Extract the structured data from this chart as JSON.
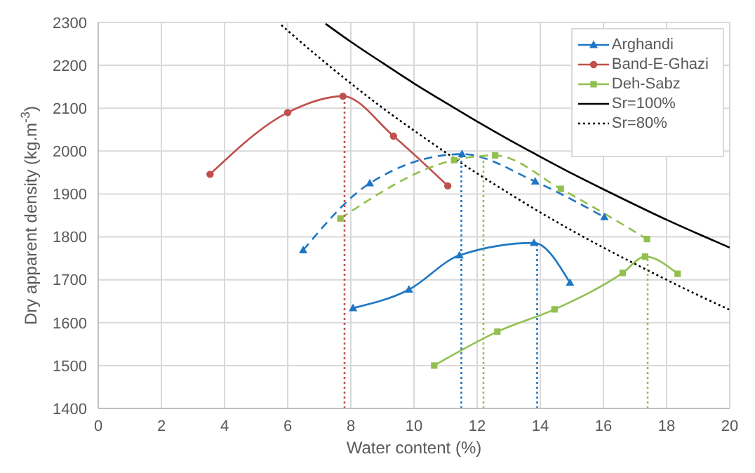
{
  "chart_data": {
    "type": "line",
    "xlabel": "Water content (%)",
    "ylabel": "Dry apparent density (kg.m$^{-3}$)",
    "xlim": [
      0,
      20
    ],
    "xticks": [
      0,
      2,
      4,
      6,
      8,
      10,
      12,
      14,
      16,
      18,
      20
    ],
    "ylim": [
      1400,
      2300
    ],
    "yticks": [
      1400,
      1500,
      1600,
      1700,
      1800,
      1900,
      2000,
      2100,
      2200,
      2300
    ],
    "grid": true,
    "legend": "top right",
    "line_style": "solid",
    "series": [
      {
        "name": "Arghandi",
        "color": "#1f77c4",
        "marker": "triangle",
        "x": [
          8.07,
          9.84,
          11.44,
          13.8,
          14.94
        ],
        "values": [
          1634,
          1677,
          1757,
          1786,
          1693
        ]
      },
      {
        "name": "Band-E-Ghazi",
        "color": "#c0504d",
        "marker": "circle",
        "x": [
          3.54,
          6.0,
          7.75,
          9.35,
          11.07
        ],
        "values": [
          1946,
          2090,
          2128,
          2035,
          1919
        ]
      },
      {
        "name": "Deh-Sabz",
        "color": "#92c050",
        "marker": "square",
        "x": [
          10.64,
          12.64,
          14.45,
          16.61,
          17.32,
          18.35
        ],
        "values": [
          1500,
          1579,
          1631,
          1716,
          1754,
          1714
        ]
      },
      {
        "name": "Sr=100%",
        "color": "#000000",
        "marker": "none",
        "x": [
          7.2,
          8,
          9,
          10,
          11,
          12,
          13,
          14,
          15,
          16,
          17,
          18,
          19,
          20
        ],
        "values": [
          2297,
          2255,
          2206,
          2158,
          2113,
          2069,
          2027,
          1987,
          1948,
          1911,
          1875,
          1840,
          1807,
          1775
        ]
      },
      {
        "name": "Sr=80%",
        "color": "#000000",
        "marker": "none",
        "line_style": "dotted",
        "x": [
          5.8,
          6,
          7,
          8,
          9,
          10,
          11,
          12,
          13,
          14,
          15,
          16,
          17,
          18,
          19,
          20
        ],
        "values": [
          2294,
          2281,
          2218,
          2158,
          2101,
          2048,
          1997,
          1948,
          1902,
          1857,
          1815,
          1775,
          1737,
          1700,
          1664,
          1630
        ]
      },
      {
        "color": "#1f77c4",
        "marker": "triangle",
        "line_style": "dashed",
        "x": [
          6.49,
          8.6,
          11.52,
          13.84,
          16.03
        ],
        "values": [
          1769,
          1925,
          1993,
          1929,
          1846
        ]
      },
      {
        "color": "#92c050",
        "marker": "square",
        "line_style": "dashed",
        "x": [
          7.67,
          11.27,
          12.57,
          14.65,
          17.38
        ],
        "values": [
          1843,
          1979,
          1990,
          1912,
          1795
        ]
      },
      {
        "color": "#c0504d",
        "marker": "none",
        "line_style": "dotted",
        "x": [
          7.8,
          7.8
        ],
        "values": [
          1400,
          2128
        ]
      },
      {
        "color": "#1f77c4",
        "marker": "none",
        "line_style": "dotted",
        "x": [
          11.5,
          11.5
        ],
        "values": [
          1400,
          1993
        ]
      },
      {
        "color": "#92c050",
        "marker": "none",
        "line_style": "dotted",
        "x": [
          12.2,
          12.2
        ],
        "values": [
          1400,
          1990
        ]
      },
      {
        "color": "#1f77c4",
        "marker": "none",
        "line_style": "dotted",
        "x": [
          13.9,
          13.9
        ],
        "values": [
          1400,
          1786
        ]
      },
      {
        "color": "#92c050",
        "marker": "none",
        "line_style": "dotted",
        "x": [
          17.4,
          17.4
        ],
        "values": [
          1400,
          1754
        ]
      }
    ]
  }
}
